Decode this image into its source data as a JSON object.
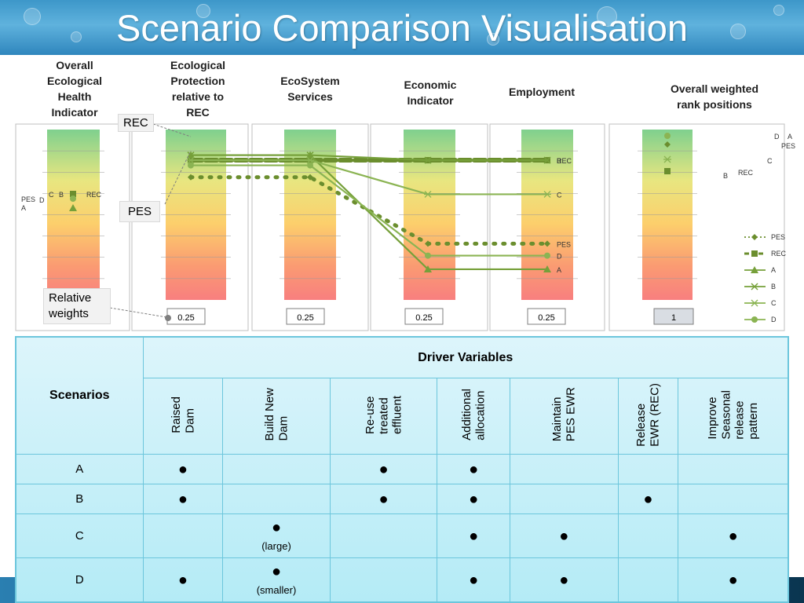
{
  "slide": {
    "title": "Scenario Comparison Visualisation"
  },
  "callouts": {
    "rec": "REC",
    "pes": "PES",
    "relative_weights": "Relative weights"
  },
  "chart_data": {
    "type": "line",
    "panels": [
      {
        "title": "Overall Ecological Health Indicator",
        "weight": ""
      },
      {
        "title": "Ecological Protection relative to REC",
        "weight": "0.25"
      },
      {
        "title": "EcoSystem Services",
        "weight": "0.25"
      },
      {
        "title": "Economic Indicator",
        "weight": "0.25"
      },
      {
        "title": "Employment",
        "weight": "0.25"
      },
      {
        "title": "Overall weighted rank positions",
        "weight": "1"
      }
    ],
    "series": [
      {
        "name": "PES",
        "color": "#6b8e2e",
        "style": "dotted",
        "marker": "diamond",
        "values": {
          "ecological_protection": 0.72,
          "ecosystem_services": 0.72,
          "economic": 0.33,
          "employment": 0.33
        }
      },
      {
        "name": "REC",
        "color": "#6b8e2e",
        "style": "dashed",
        "marker": "square",
        "values": {
          "ecological_protection": 0.82,
          "ecosystem_services": 0.82,
          "economic": 0.82,
          "employment": 0.82
        }
      },
      {
        "name": "A",
        "color": "#76a03a",
        "style": "solid",
        "marker": "triangle",
        "values": {
          "ecological_protection": 0.85,
          "ecosystem_services": 0.85,
          "economic": 0.18,
          "employment": 0.18
        }
      },
      {
        "name": "B",
        "color": "#76a03a",
        "style": "solid",
        "marker": "x",
        "values": {
          "ecological_protection": 0.85,
          "ecosystem_services": 0.85,
          "economic": 0.82,
          "employment": 0.82
        }
      },
      {
        "name": "C",
        "color": "#8bb453",
        "style": "solid",
        "marker": "star",
        "values": {
          "ecological_protection": 0.82,
          "ecosystem_services": 0.82,
          "economic": 0.62,
          "employment": 0.62
        }
      },
      {
        "name": "D",
        "color": "#8bb453",
        "style": "solid",
        "marker": "circle",
        "values": {
          "ecological_protection": 0.79,
          "ecosystem_services": 0.79,
          "economic": 0.26,
          "employment": 0.26
        }
      }
    ],
    "overall_health_labels": {
      "left": [
        "PES",
        "A"
      ],
      "mid": [
        "D",
        "C",
        "B"
      ],
      "right": "REC"
    },
    "rank_labels": {
      "top": [
        "D",
        "A"
      ],
      "second": "PES",
      "third": "C",
      "fourth": [
        "B",
        "REC"
      ]
    },
    "legend": [
      "PES",
      "REC",
      "A",
      "B",
      "C",
      "D"
    ]
  },
  "table": {
    "scenarios_header": "Scenarios",
    "driver_header": "Driver Variables",
    "columns": [
      "Raised\nDam",
      "Build New\nDam",
      "Re-use\ntreated\neffluent",
      "Additional\nallocation",
      "Maintain\nPES EWR",
      "Release\nEWR (REC)",
      "Improve\nSeasonal\nrelease\npattern"
    ],
    "rows": [
      {
        "name": "A",
        "cells": [
          "●",
          "",
          "●",
          "●",
          "",
          "",
          ""
        ],
        "notes": [
          "",
          "",
          "",
          "",
          "",
          "",
          ""
        ]
      },
      {
        "name": "B",
        "cells": [
          "●",
          "",
          "●",
          "●",
          "",
          "●",
          ""
        ],
        "notes": [
          "",
          "",
          "",
          "",
          "",
          "",
          ""
        ]
      },
      {
        "name": "C",
        "cells": [
          "",
          "●",
          "",
          "●",
          "●",
          "",
          "●"
        ],
        "notes": [
          "",
          "(large)",
          "",
          "",
          "",
          "",
          ""
        ]
      },
      {
        "name": "D",
        "cells": [
          "●",
          "●",
          "",
          "●",
          "●",
          "",
          "●"
        ],
        "notes": [
          "",
          "(smaller)",
          "",
          "",
          "",
          "",
          ""
        ]
      }
    ]
  }
}
